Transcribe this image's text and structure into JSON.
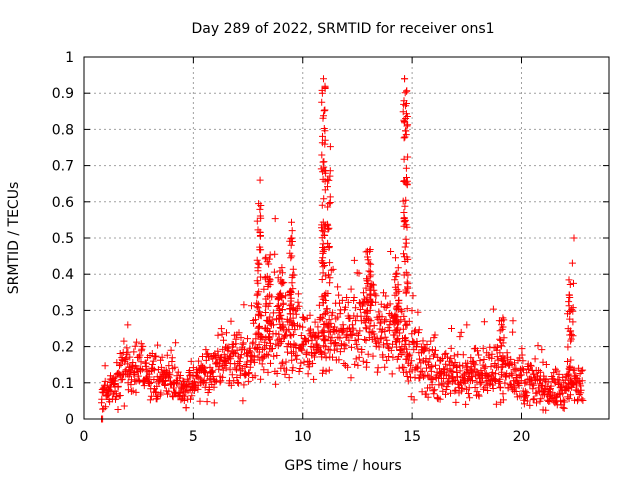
{
  "chart_data": {
    "type": "scatter",
    "title": "Day 289 of 2022, SRMTID for receiver ons1",
    "xlabel": "GPS time / hours",
    "ylabel": "SRMTID / TECUs",
    "xlim": [
      0,
      24
    ],
    "ylim": [
      0,
      1
    ],
    "grid": true,
    "marker": "+",
    "color": "#ff0000",
    "x_ticks": [
      "0",
      "5",
      "10",
      "15",
      "20"
    ],
    "y_ticks": [
      "0",
      "0.1",
      "0.2",
      "0.3",
      "0.4",
      "0.5",
      "0.6",
      "0.7",
      "0.8",
      "0.9",
      "1"
    ],
    "profile": {
      "x": [
        0.8,
        1.0,
        1.5,
        2.0,
        2.5,
        3.0,
        3.5,
        4.0,
        4.5,
        5.0,
        5.5,
        6.0,
        6.5,
        7.0,
        7.5,
        8.0,
        8.5,
        9.0,
        9.5,
        10.0,
        10.5,
        11.0,
        11.5,
        12.0,
        12.5,
        13.0,
        13.5,
        14.0,
        14.5,
        15.0,
        15.5,
        16.0,
        16.5,
        17.0,
        17.5,
        18.0,
        18.5,
        19.0,
        19.5,
        20.0,
        20.5,
        21.0,
        21.5,
        22.0,
        22.5,
        22.8
      ],
      "y": [
        0.06,
        0.07,
        0.1,
        0.12,
        0.13,
        0.12,
        0.11,
        0.1,
        0.08,
        0.1,
        0.12,
        0.14,
        0.17,
        0.17,
        0.16,
        0.2,
        0.22,
        0.24,
        0.23,
        0.2,
        0.19,
        0.21,
        0.23,
        0.25,
        0.25,
        0.27,
        0.24,
        0.23,
        0.22,
        0.18,
        0.15,
        0.13,
        0.12,
        0.12,
        0.12,
        0.12,
        0.13,
        0.14,
        0.13,
        0.11,
        0.1,
        0.09,
        0.08,
        0.08,
        0.1,
        0.12
      ],
      "spread": [
        0.02,
        0.03,
        0.04,
        0.05,
        0.05,
        0.05,
        0.05,
        0.04,
        0.04,
        0.04,
        0.05,
        0.05,
        0.06,
        0.06,
        0.06,
        0.08,
        0.09,
        0.09,
        0.09,
        0.07,
        0.07,
        0.08,
        0.08,
        0.09,
        0.09,
        0.1,
        0.09,
        0.08,
        0.08,
        0.07,
        0.06,
        0.05,
        0.05,
        0.05,
        0.05,
        0.05,
        0.05,
        0.06,
        0.05,
        0.05,
        0.04,
        0.04,
        0.04,
        0.04,
        0.05,
        0.05
      ]
    },
    "features": [
      {
        "x": 8.0,
        "top": 0.66,
        "width": 0.18,
        "count": 35
      },
      {
        "x": 8.4,
        "top": 0.46,
        "width": 0.25,
        "count": 30
      },
      {
        "x": 9.0,
        "top": 0.42,
        "width": 0.25,
        "count": 28
      },
      {
        "x": 9.5,
        "top": 0.55,
        "width": 0.2,
        "count": 35
      },
      {
        "x": 10.95,
        "top": 0.94,
        "width": 0.22,
        "count": 70
      },
      {
        "x": 11.2,
        "top": 0.76,
        "width": 0.15,
        "count": 28
      },
      {
        "x": 13.0,
        "top": 0.47,
        "width": 0.25,
        "count": 35
      },
      {
        "x": 14.3,
        "top": 0.45,
        "width": 0.2,
        "count": 30
      },
      {
        "x": 14.7,
        "top": 0.94,
        "width": 0.22,
        "count": 70
      },
      {
        "x": 19.1,
        "top": 0.3,
        "width": 0.2,
        "count": 15
      },
      {
        "x": 22.2,
        "top": 0.4,
        "width": 0.2,
        "count": 25
      },
      {
        "x": 22.35,
        "top": 0.5,
        "width": 0.08,
        "count": 6
      }
    ],
    "points": [
      {
        "x": 0.8,
        "y": 0.0
      },
      {
        "x": 0.85,
        "y": 0.0
      },
      {
        "x": 10.95,
        "y": 0.94
      },
      {
        "x": 14.65,
        "y": 0.94
      },
      {
        "x": 10.9,
        "y": 0.9
      },
      {
        "x": 14.7,
        "y": 0.83
      },
      {
        "x": 8.05,
        "y": 0.66
      },
      {
        "x": 22.4,
        "y": 0.5
      },
      {
        "x": 2.0,
        "y": 0.26
      },
      {
        "x": 16.8,
        "y": 0.25
      },
      {
        "x": 17.5,
        "y": 0.26
      },
      {
        "x": 11.5,
        "y": 0.32
      }
    ]
  }
}
